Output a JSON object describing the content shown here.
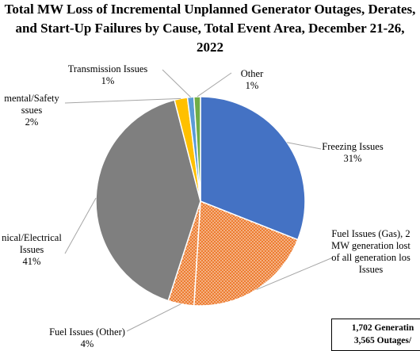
{
  "chart_data": {
    "type": "pie",
    "title": "Total MW Loss of Incremental Unplanned Generator Outages, Derates, and Start-Up Failures by Cause, Total Event Area,  December 21-26, 2022",
    "title_lines": [
      "Total MW Loss of Incremental Unplanned Generator Outages, Derates,",
      "and Start-Up Failures by Cause, Total Event Area,  December 21-26,",
      "2022"
    ],
    "slices": [
      {
        "name_lines": [
          "Freezing Issues"
        ],
        "value": 31,
        "pct_label": "31%",
        "color": "#4472C4",
        "pattern": false
      },
      {
        "name_lines": [
          "Fuel Issues (Gas), 2",
          "MW generation lost",
          "of all generation los",
          "Issues"
        ],
        "value": 20,
        "pct_label": "",
        "color": "#ED7D31",
        "pattern": true
      },
      {
        "name_lines": [
          "Fuel Issues (Other)"
        ],
        "value": 4,
        "pct_label": "4%",
        "color": "#ED7D31",
        "pattern": true
      },
      {
        "name_lines": [
          "nical/Electrical",
          "Issues"
        ],
        "value": 41,
        "pct_label": "41%",
        "color": "#7F7F7F",
        "pattern": false
      },
      {
        "name_lines": [
          "mental/Safety",
          "ssues"
        ],
        "value": 2,
        "pct_label": "2%",
        "color": "#FFC000",
        "pattern": false
      },
      {
        "name_lines": [
          "Transmission Issues"
        ],
        "value": 1,
        "pct_label": "1%",
        "color": "#5B9BD5",
        "pattern": false
      },
      {
        "name_lines": [
          "Other"
        ],
        "value": 1,
        "pct_label": "1%",
        "color": "#70AD47",
        "pattern": false
      }
    ]
  },
  "info_box": {
    "line1": "1,702 Generatin",
    "line2": "3,565 Outages/"
  }
}
